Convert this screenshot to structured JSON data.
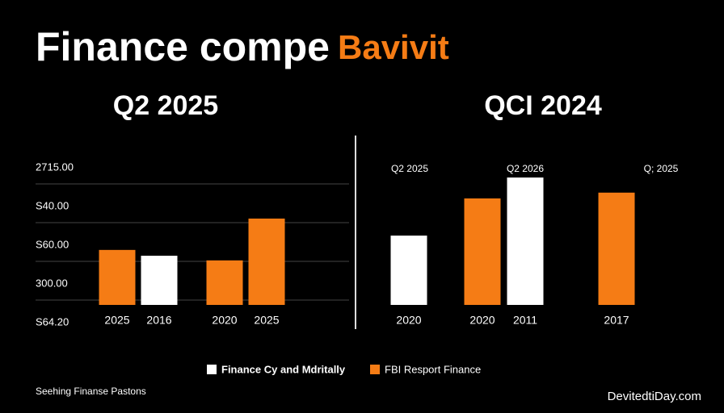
{
  "title": "Finance compe",
  "title_highlight": "Bavivit",
  "legend": [
    {
      "name": "Finance Cy and Mdritally",
      "color": "#ffffff"
    },
    {
      "name": "FBI Resport Finance",
      "color": "#f57c15"
    }
  ],
  "footer_left": "Seehing Finanse Pastons",
  "footer_right": "DevitedtiDay.com",
  "chart_data": [
    {
      "type": "bar",
      "title": "Q2 2025",
      "categories": [
        "2025",
        "2016",
        "2020",
        "2025"
      ],
      "series": [
        {
          "color": "#ffffff",
          "values": [
            null,
            1.27,
            null,
            null
          ]
        },
        {
          "color": "#f57c15",
          "values": [
            1.42,
            null,
            1.15,
            2.23
          ]
        }
      ],
      "ylim": [
        -1,
        4
      ],
      "yticks": [
        {
          "value": 3.125,
          "label": "2715.00"
        },
        {
          "value": 2.125,
          "label": "S40.00"
        },
        {
          "value": 1.125,
          "label": "S60.00"
        },
        {
          "value": 0.125,
          "label": "300.00"
        },
        {
          "value": -0.875,
          "label": "S64.20"
        }
      ],
      "grid": true
    },
    {
      "type": "bar",
      "title": "QCI 2024",
      "categories": [
        "2020",
        "2020",
        "2011",
        "2017"
      ],
      "series": [
        {
          "color": "#ffffff",
          "values": [
            1.79,
            null,
            3.29,
            null
          ]
        },
        {
          "color": "#f57c15",
          "values": [
            null,
            2.75,
            null,
            2.9
          ]
        }
      ],
      "ylim": [
        -1,
        4
      ],
      "annotations": [
        "Q2 2025",
        "Q2 2026",
        "Q; 2025"
      ]
    }
  ]
}
